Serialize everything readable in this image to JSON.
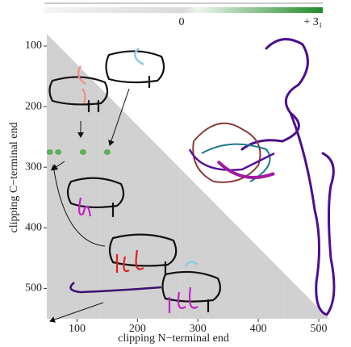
{
  "chart_data": {
    "type": "scatter",
    "colorbar": {
      "labels": [
        "0",
        "+ 3₁"
      ]
    },
    "xlabel": "clipping N−terminal end",
    "ylabel": "clipping C−terminal end",
    "xlim": [
      50,
      520
    ],
    "ylim": [
      80,
      550
    ],
    "xticks": [
      100,
      200,
      300,
      400,
      500
    ],
    "yticks": [
      100,
      200,
      300,
      400,
      500
    ],
    "y_inverted": true,
    "series": [
      {
        "color": "#5fae5a",
        "x": [
          55,
          69,
          110,
          150
        ],
        "values": [
          275,
          275,
          275,
          275
        ]
      }
    ]
  }
}
